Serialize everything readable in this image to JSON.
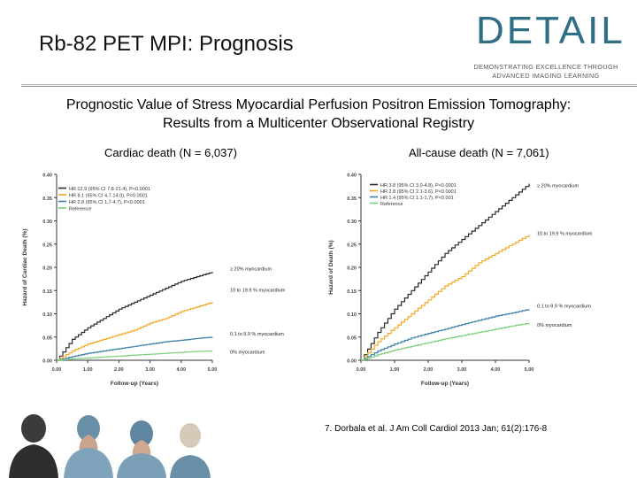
{
  "slide": {
    "title": "Rb-82 PET MPI: Prognosis",
    "subtitle_line1": "Prognostic Value of Stress Myocardial Perfusion Positron Emission Tomography:",
    "subtitle_line2": "Results from a Multicenter Observational Registry",
    "citation": "7. Dorbala et al. J Am Coll Cardiol 2013 Jan; 61(2):176-8"
  },
  "logo": {
    "word": "DETAIL",
    "tagline1": "DEMONSTRATING EXCELLENCE THROUGH",
    "tagline2": "ADVANCED IMAGING LEARNING",
    "color": "#2f6f86"
  },
  "photo": {
    "icon": "surgeons-photo"
  },
  "chart_data": [
    {
      "type": "line",
      "title": "Cardiac death (N = 6,037)",
      "xlabel": "Follow-up (Years)",
      "ylabel": "Hazard of Cardiac Death (%)",
      "xlim": [
        0,
        5
      ],
      "ylim": [
        0,
        0.4
      ],
      "xticks": [
        "0.00",
        "1.00",
        "2.00",
        "3.00",
        "4.00",
        "5.00"
      ],
      "yticks": [
        "0.00",
        "0.05",
        "0.10",
        "0.15",
        "0.20",
        "0.25",
        "0.30",
        "0.35",
        "0.40"
      ],
      "legend_position": "top-left",
      "legend": [
        {
          "label": "HR 12.9 (95% CI 7.8-21.4), P<0.0001",
          "color": "#2a2a2a"
        },
        {
          "label": "HR 8.1 (95% CI 4.7-14.0), P<0.0001",
          "color": "#f5a623"
        },
        {
          "label": "HR 2.8 (95% CI 1.7-4.7), P<0.0001",
          "color": "#3a7fa8"
        },
        {
          "label": "Reference",
          "color": "#7ccf7a"
        }
      ],
      "series": [
        {
          "name": "≥ 20% myocardium",
          "color": "#2a2a2a",
          "x": [
            0,
            0.5,
            1,
            1.5,
            2,
            2.5,
            3,
            3.5,
            4,
            4.5,
            5
          ],
          "y": [
            0,
            0.045,
            0.07,
            0.09,
            0.11,
            0.125,
            0.14,
            0.155,
            0.17,
            0.18,
            0.19
          ]
        },
        {
          "name": "10 to 19.9 % myocardium",
          "color": "#f5a623",
          "x": [
            0,
            0.5,
            1,
            1.5,
            2,
            2.5,
            3,
            3.5,
            4,
            4.5,
            5
          ],
          "y": [
            0,
            0.02,
            0.035,
            0.045,
            0.055,
            0.065,
            0.08,
            0.09,
            0.105,
            0.115,
            0.125
          ]
        },
        {
          "name": "0.1 to 9.9 % myocardium",
          "color": "#3a7fa8",
          "x": [
            0,
            0.5,
            1,
            1.5,
            2,
            2.5,
            3,
            3.5,
            4,
            4.5,
            5
          ],
          "y": [
            0,
            0.008,
            0.015,
            0.02,
            0.025,
            0.03,
            0.035,
            0.04,
            0.043,
            0.047,
            0.05
          ]
        },
        {
          "name": "0% myocardium",
          "color": "#7ccf7a",
          "x": [
            0,
            0.5,
            1,
            1.5,
            2,
            2.5,
            3,
            3.5,
            4,
            4.5,
            5
          ],
          "y": [
            0,
            0.003,
            0.005,
            0.007,
            0.009,
            0.011,
            0.013,
            0.015,
            0.017,
            0.019,
            0.02
          ]
        }
      ]
    },
    {
      "type": "line",
      "title": "All-cause death (N = 7,061)",
      "xlabel": "Follow-up (Years)",
      "ylabel": "Hazard of Death (%)",
      "xlim": [
        0,
        5
      ],
      "ylim": [
        0,
        0.4
      ],
      "xticks": [
        "0.00",
        "1.00",
        "2.00",
        "3.00",
        "4.00",
        "5.00"
      ],
      "yticks": [
        "0.00",
        "0.05",
        "0.10",
        "0.15",
        "0.20",
        "0.25",
        "0.30",
        "0.35",
        "0.40"
      ],
      "legend_position": "top-left",
      "legend": [
        {
          "label": "HR 3.8 (95% CI 3.0-4.8), P<0.0001",
          "color": "#2a2a2a"
        },
        {
          "label": "HR 2.8 (95% CI 2.1-3.6), P<0.0001",
          "color": "#f5a623"
        },
        {
          "label": "HR 1.4 (95% CI 1.1-1.7), P<0.001",
          "color": "#3a7fa8"
        },
        {
          "label": "Reference",
          "color": "#7ccf7a"
        }
      ],
      "series": [
        {
          "name": "≥ 20% myocardium",
          "color": "#2a2a2a",
          "x": [
            0,
            0.5,
            1,
            1.5,
            2,
            2.5,
            3,
            3.5,
            4,
            4.5,
            5
          ],
          "y": [
            0,
            0.06,
            0.11,
            0.15,
            0.19,
            0.23,
            0.26,
            0.29,
            0.32,
            0.35,
            0.38
          ]
        },
        {
          "name": "10 to 19.9 % myocardium",
          "color": "#f5a623",
          "x": [
            0,
            0.5,
            1,
            1.5,
            2,
            2.5,
            3,
            3.5,
            4,
            4.5,
            5
          ],
          "y": [
            0,
            0.04,
            0.07,
            0.1,
            0.13,
            0.16,
            0.18,
            0.21,
            0.23,
            0.25,
            0.27
          ]
        },
        {
          "name": "0.1 to 9.9 % myocardium",
          "color": "#3a7fa8",
          "x": [
            0,
            0.5,
            1,
            1.5,
            2,
            2.5,
            3,
            3.5,
            4,
            4.5,
            5
          ],
          "y": [
            0,
            0.02,
            0.035,
            0.048,
            0.058,
            0.067,
            0.077,
            0.086,
            0.095,
            0.102,
            0.11
          ]
        },
        {
          "name": "0% myocardium",
          "color": "#7ccf7a",
          "x": [
            0,
            0.5,
            1,
            1.5,
            2,
            2.5,
            3,
            3.5,
            4,
            4.5,
            5
          ],
          "y": [
            0,
            0.012,
            0.022,
            0.03,
            0.038,
            0.046,
            0.053,
            0.06,
            0.067,
            0.074,
            0.08
          ]
        }
      ],
      "curve_labels": [
        "≥ 20% myocardium",
        "10 to 19.9 % myocardium",
        "0.1 to 9.9 % myocardium",
        "0% myocardium"
      ]
    }
  ]
}
